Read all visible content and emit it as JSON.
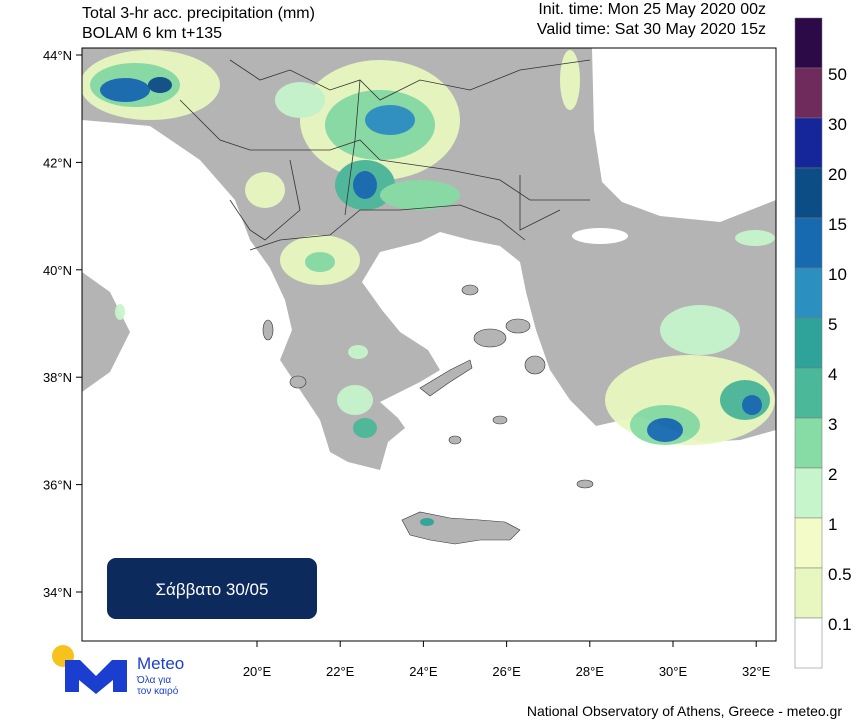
{
  "header": {
    "title": "Total 3-hr acc. precipitation (mm)",
    "model": "BOLAM 6 km t+135",
    "init_time": "Init. time: Mon 25 May 2020 00z",
    "valid_time": "Valid time: Sat 30 May 2020 15z"
  },
  "map": {
    "lat_labels": [
      "44°N",
      "42°N",
      "40°N",
      "38°N",
      "36°N",
      "34°N"
    ],
    "lon_labels": [
      "20°E",
      "22°E",
      "24°E",
      "26°E",
      "28°E",
      "30°E",
      "32°E"
    ]
  },
  "colorbar": {
    "colors": [
      "#2b0a47",
      "#6e2b5c",
      "#15269a",
      "#0c4d86",
      "#1769b0",
      "#2b8fc0",
      "#2fa39a",
      "#4cb89a",
      "#86dca4",
      "#c6f5cc",
      "#f3fbc8",
      "#e8f7bf",
      "#ffffff"
    ],
    "labels": [
      "50",
      "30",
      "20",
      "15",
      "10",
      "5",
      "4",
      "3",
      "2",
      "1",
      "0.5",
      "0.1"
    ]
  },
  "date_box": "Σάββατο 30/05",
  "logo": {
    "name": "Meteo",
    "slogan_1": "Όλα για",
    "slogan_2": "τον καιρό"
  },
  "footer": "National Observatory of Athens, Greece - meteo.gr"
}
